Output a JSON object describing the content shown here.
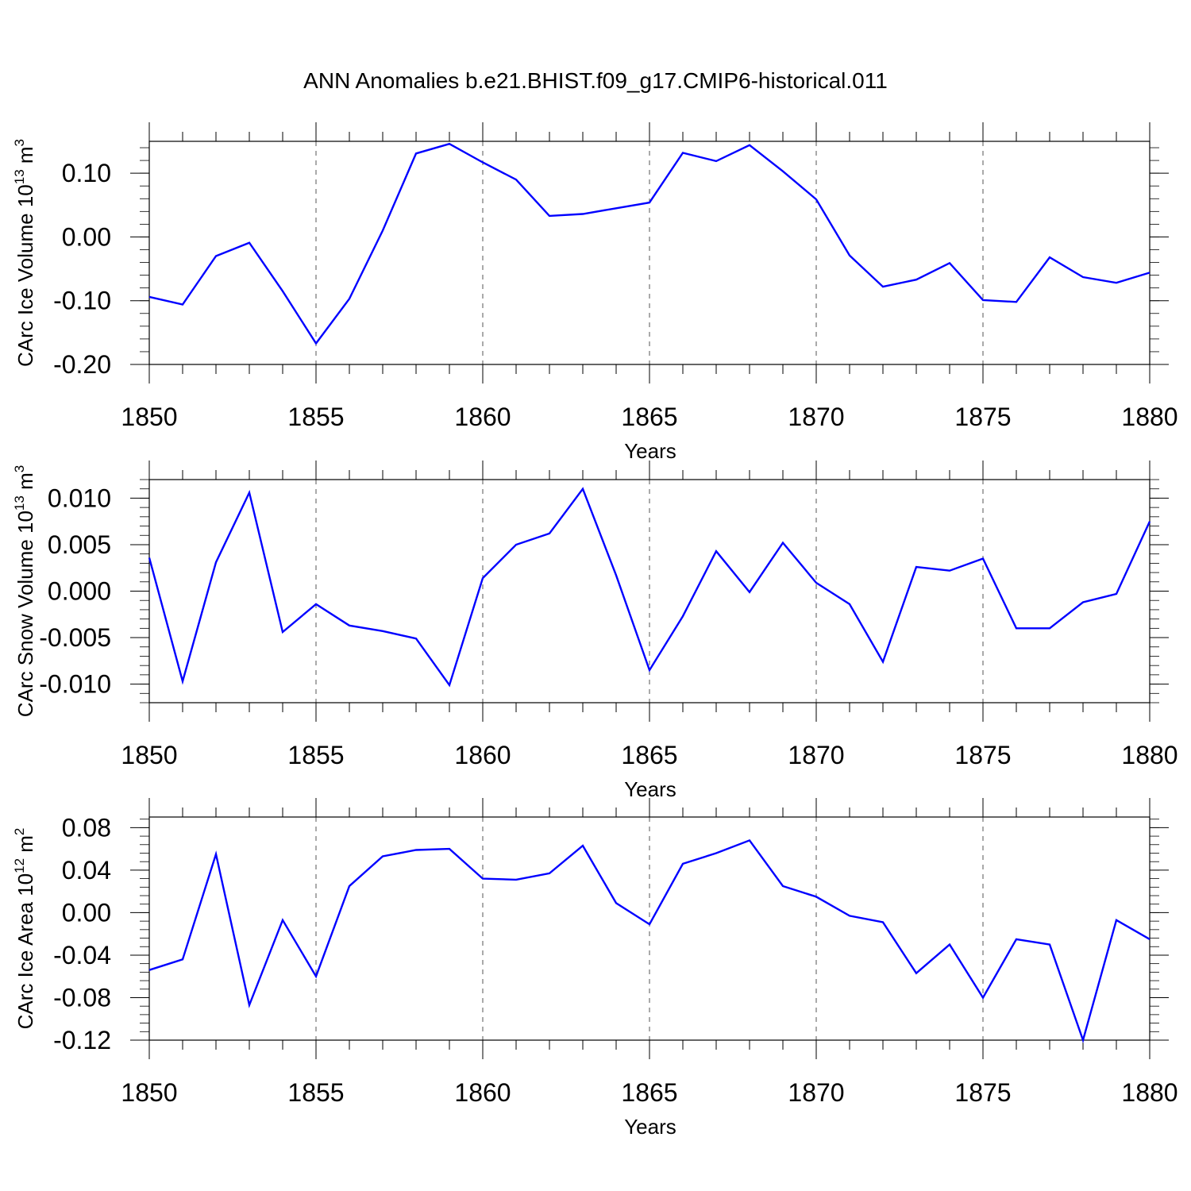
{
  "title": "ANN Anomalies b.e21.BHIST.f09_g17.CMIP6-historical.011",
  "line_color": "#0000ff",
  "chart_data": [
    {
      "type": "line",
      "ylabel": "CArc Ice Volume 10",
      "ylabel_exp": "13",
      "ylabel_unit": " m",
      "ylabel_unit_exp": "3",
      "xlabel": "Years",
      "xlim": [
        1850,
        1880
      ],
      "ylim": [
        -0.2,
        0.15
      ],
      "xticks": [
        "1850",
        "1855",
        "1860",
        "1865",
        "1870",
        "1875",
        "1880"
      ],
      "yticks": [
        {
          "value": 0.1,
          "label": "0.10"
        },
        {
          "value": 0.0,
          "label": "0.00"
        },
        {
          "value": -0.1,
          "label": "-0.10"
        },
        {
          "value": -0.2,
          "label": "-0.20"
        }
      ],
      "x": [
        1850,
        1851,
        1852,
        1853,
        1854,
        1855,
        1856,
        1857,
        1858,
        1859,
        1860,
        1861,
        1862,
        1863,
        1864,
        1865,
        1866,
        1867,
        1868,
        1869,
        1870,
        1871,
        1872,
        1873,
        1874,
        1875,
        1876,
        1877,
        1878,
        1879,
        1880
      ],
      "values": [
        -0.094,
        -0.106,
        -0.03,
        -0.009,
        -0.085,
        -0.167,
        -0.097,
        0.01,
        0.131,
        0.146,
        0.117,
        0.09,
        0.033,
        0.036,
        0.045,
        0.054,
        0.132,
        0.119,
        0.144,
        0.103,
        0.059,
        -0.029,
        -0.078,
        -0.067,
        -0.041,
        -0.099,
        -0.102,
        -0.032,
        -0.063,
        -0.072,
        -0.056
      ]
    },
    {
      "type": "line",
      "ylabel": "CArc Snow Volume 10",
      "ylabel_exp": "13",
      "ylabel_unit": " m",
      "ylabel_unit_exp": "3",
      "xlabel": "Years",
      "xlim": [
        1850,
        1880
      ],
      "ylim": [
        -0.012,
        0.012
      ],
      "xticks": [
        "1850",
        "1855",
        "1860",
        "1865",
        "1870",
        "1875",
        "1880"
      ],
      "yticks": [
        {
          "value": 0.01,
          "label": "0.010"
        },
        {
          "value": 0.005,
          "label": "0.005"
        },
        {
          "value": 0.0,
          "label": "0.000"
        },
        {
          "value": -0.005,
          "label": "-0.005"
        },
        {
          "value": -0.01,
          "label": "-0.010"
        }
      ],
      "x": [
        1850,
        1851,
        1852,
        1853,
        1854,
        1855,
        1856,
        1857,
        1858,
        1859,
        1860,
        1861,
        1862,
        1863,
        1864,
        1865,
        1866,
        1867,
        1868,
        1869,
        1870,
        1871,
        1872,
        1873,
        1874,
        1875,
        1876,
        1877,
        1878,
        1879,
        1880
      ],
      "values": [
        0.0036,
        -0.0097,
        0.0031,
        0.0106,
        -0.0044,
        -0.0014,
        -0.0037,
        -0.0043,
        -0.0051,
        -0.0101,
        0.0014,
        0.005,
        0.0062,
        0.011,
        0.0017,
        -0.0085,
        -0.0027,
        0.0043,
        -0.0001,
        0.0052,
        0.0009,
        -0.0014,
        -0.0076,
        0.0026,
        0.0022,
        0.0035,
        -0.004,
        -0.004,
        -0.0012,
        -0.0003,
        0.0075
      ]
    },
    {
      "type": "line",
      "ylabel": "CArc Ice Area 10",
      "ylabel_exp": "12",
      "ylabel_unit": " m",
      "ylabel_unit_exp": "2",
      "xlabel": "Years",
      "xlim": [
        1850,
        1880
      ],
      "ylim": [
        -0.12,
        0.09
      ],
      "xticks": [
        "1850",
        "1855",
        "1860",
        "1865",
        "1870",
        "1875",
        "1880"
      ],
      "yticks": [
        {
          "value": 0.08,
          "label": "0.08"
        },
        {
          "value": 0.04,
          "label": "0.04"
        },
        {
          "value": 0.0,
          "label": "0.00"
        },
        {
          "value": -0.04,
          "label": "-0.04"
        },
        {
          "value": -0.08,
          "label": "-0.08"
        },
        {
          "value": -0.12,
          "label": "-0.12"
        }
      ],
      "x": [
        1850,
        1851,
        1852,
        1853,
        1854,
        1855,
        1856,
        1857,
        1858,
        1859,
        1860,
        1861,
        1862,
        1863,
        1864,
        1865,
        1866,
        1867,
        1868,
        1869,
        1870,
        1871,
        1872,
        1873,
        1874,
        1875,
        1876,
        1877,
        1878,
        1879,
        1880
      ],
      "values": [
        -0.054,
        -0.044,
        0.055,
        -0.087,
        -0.007,
        -0.06,
        0.025,
        0.053,
        0.059,
        0.06,
        0.032,
        0.031,
        0.037,
        0.063,
        0.009,
        -0.011,
        0.046,
        0.056,
        0.068,
        0.025,
        0.015,
        -0.003,
        -0.009,
        -0.057,
        -0.03,
        -0.08,
        -0.025,
        -0.03,
        -0.12,
        -0.007,
        -0.025
      ]
    }
  ]
}
